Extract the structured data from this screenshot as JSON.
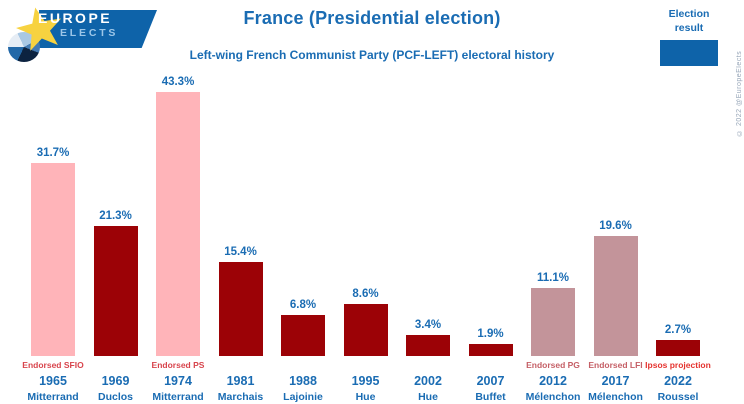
{
  "logo": {
    "line1": "EUROPE",
    "line2": "ELECTS"
  },
  "header": {
    "title": "France (Presidential election)",
    "subtitle": "Left-wing French Communist Party (PCF-LEFT) electoral history",
    "copyright": "© 2022 @EuropeElects"
  },
  "legend": {
    "label": "Election result",
    "color": "#0e63a9"
  },
  "chart_data": {
    "type": "bar",
    "title": "France (Presidential election)",
    "subtitle": "Left-wing French Communist Party (PCF-LEFT) electoral history",
    "xlabel": "",
    "ylabel": "",
    "unit": "%",
    "ylim": [
      0,
      45
    ],
    "grid": false,
    "legend_position": "top-right",
    "categories": [
      "1965",
      "1969",
      "1974",
      "1981",
      "1988",
      "1995",
      "2002",
      "2007",
      "2012",
      "2017",
      "2022"
    ],
    "values": [
      31.7,
      21.3,
      43.3,
      15.4,
      6.8,
      8.6,
      3.4,
      1.9,
      11.1,
      19.6,
      2.7
    ],
    "bars": [
      {
        "year": "1965",
        "candidate": "Mitterrand",
        "value": 31.7,
        "label": "31.7%",
        "note": "Endorsed SFIO",
        "note_color_key": "note_red",
        "color_key": "pink"
      },
      {
        "year": "1969",
        "candidate": "Duclos",
        "value": 21.3,
        "label": "21.3%",
        "note": "",
        "note_color_key": "note_red",
        "color_key": "dark_red"
      },
      {
        "year": "1974",
        "candidate": "Mitterrand",
        "value": 43.3,
        "label": "43.3%",
        "note": "Endorsed PS",
        "note_color_key": "note_red",
        "color_key": "pink"
      },
      {
        "year": "1981",
        "candidate": "Marchais",
        "value": 15.4,
        "label": "15.4%",
        "note": "",
        "note_color_key": "note_red",
        "color_key": "dark_red"
      },
      {
        "year": "1988",
        "candidate": "Lajoinie",
        "value": 6.8,
        "label": "6.8%",
        "note": "",
        "note_color_key": "note_red",
        "color_key": "dark_red"
      },
      {
        "year": "1995",
        "candidate": "Hue",
        "value": 8.6,
        "label": "8.6%",
        "note": "",
        "note_color_key": "note_red",
        "color_key": "dark_red"
      },
      {
        "year": "2002",
        "candidate": "Hue",
        "value": 3.4,
        "label": "3.4%",
        "note": "",
        "note_color_key": "note_red",
        "color_key": "dark_red"
      },
      {
        "year": "2007",
        "candidate": "Buffet",
        "value": 1.9,
        "label": "1.9%",
        "note": "",
        "note_color_key": "note_red",
        "color_key": "dark_red"
      },
      {
        "year": "2012",
        "candidate": "Mélenchon",
        "value": 11.1,
        "label": "11.1%",
        "note": "Endorsed PG",
        "note_color_key": "note_muted_red",
        "color_key": "mauve"
      },
      {
        "year": "2017",
        "candidate": "Mélenchon",
        "value": 19.6,
        "label": "19.6%",
        "note": "Endorsed LFI",
        "note_color_key": "note_muted_red",
        "color_key": "mauve"
      },
      {
        "year": "2022",
        "candidate": "Roussel",
        "value": 2.7,
        "label": "2.7%",
        "note": "Ipsos projection",
        "note_color_key": "note_bright_red",
        "color_key": "dark_red"
      }
    ],
    "colors": {
      "pink": "#ffb4b9",
      "dark_red": "#9c0206",
      "mauve": "#c3949a",
      "note_red": "#d8444c",
      "note_muted_red": "#c55f66",
      "note_bright_red": "#e5322e",
      "text_blue": "#1a6cb3"
    }
  }
}
